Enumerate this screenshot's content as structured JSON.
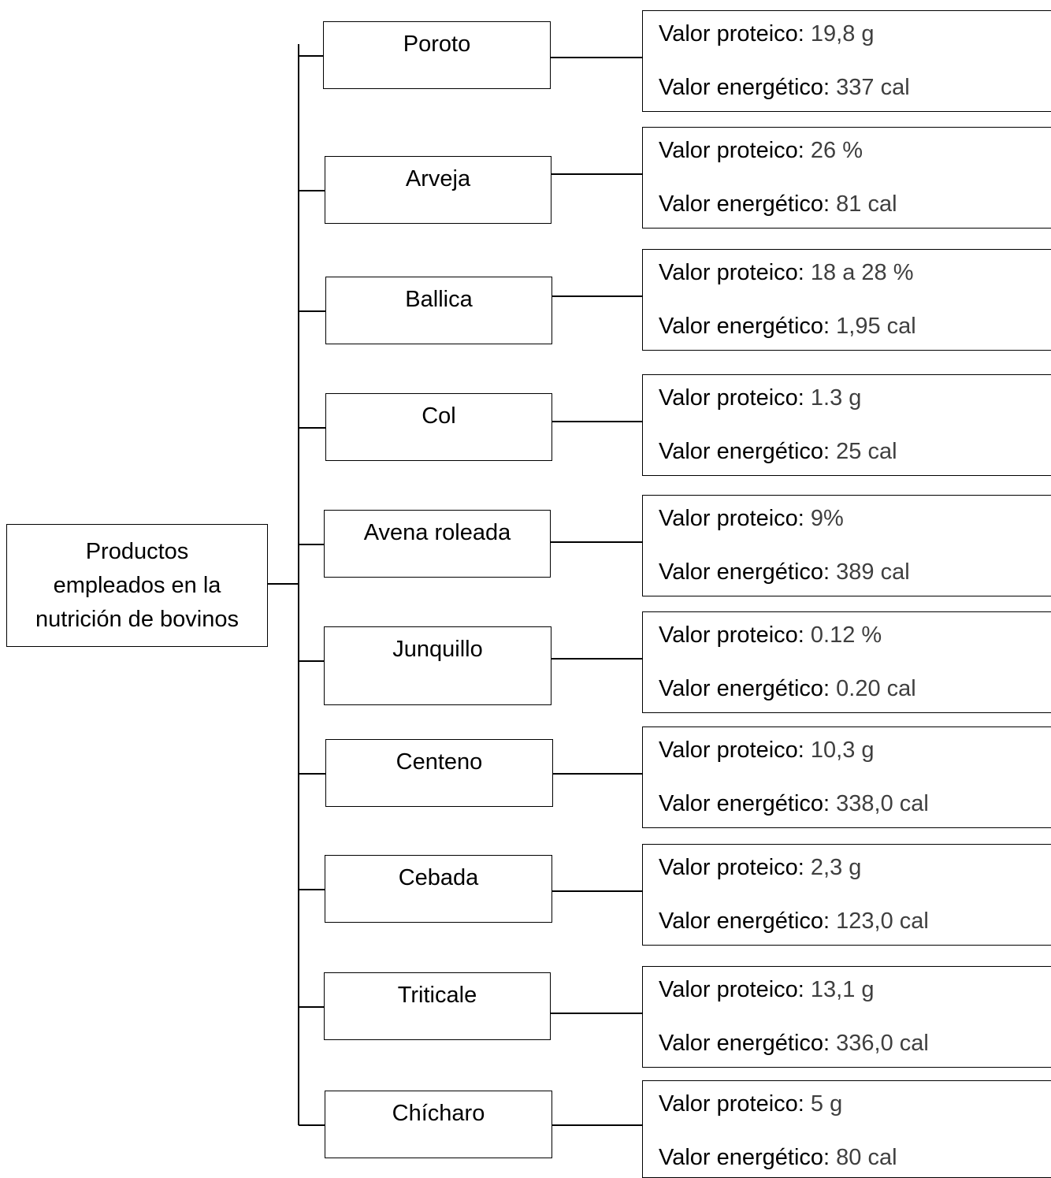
{
  "root": {
    "label_lines": [
      "Productos",
      "empleados en la",
      "nutrición de bovinos"
    ]
  },
  "products": [
    {
      "name": "Poroto",
      "protein_label": "Valor proteico:",
      "protein_value": "19,8 g",
      "energy_label": "Valor energético:",
      "energy_value": "337 cal"
    },
    {
      "name": "Arveja",
      "protein_label": "Valor proteico:",
      "protein_value": "26 %",
      "energy_label": "Valor energético:",
      "energy_value": "81 cal"
    },
    {
      "name": "Ballica",
      "protein_label": "Valor proteico:",
      "protein_value": "18 a 28 %",
      "energy_label": "Valor energético:",
      "energy_value": "1,95 cal"
    },
    {
      "name": "Col",
      "protein_label": "Valor proteico:",
      "protein_value": "1.3 g",
      "energy_label": "Valor energético:",
      "energy_value": "25 cal"
    },
    {
      "name": "Avena roleada",
      "protein_label": "Valor proteico:",
      "protein_value": "9%",
      "energy_label": "Valor energético:",
      "energy_value": "389 cal"
    },
    {
      "name": "Junquillo",
      "protein_label": "Valor proteico:",
      "protein_value": "0.12 %",
      "energy_label": "Valor energético:",
      "energy_value": "0.20 cal"
    },
    {
      "name": "Centeno",
      "protein_label": "Valor proteico:",
      "protein_value": "10,3 g",
      "energy_label": "Valor energético:",
      "energy_value": "338,0 cal"
    },
    {
      "name": "Cebada",
      "protein_label": "Valor proteico:",
      "protein_value": "2,3 g",
      "energy_label": "Valor energético:",
      "energy_value": "123,0 cal"
    },
    {
      "name": "Triticale",
      "protein_label": "Valor proteico:",
      "protein_value": "13,1 g",
      "energy_label": "Valor energético:",
      "energy_value": "336,0 cal"
    },
    {
      "name": "Chícharo",
      "protein_label": "Valor proteico:",
      "protein_value": "5 g",
      "energy_label": "Valor energético:",
      "energy_value": "80 cal"
    }
  ]
}
